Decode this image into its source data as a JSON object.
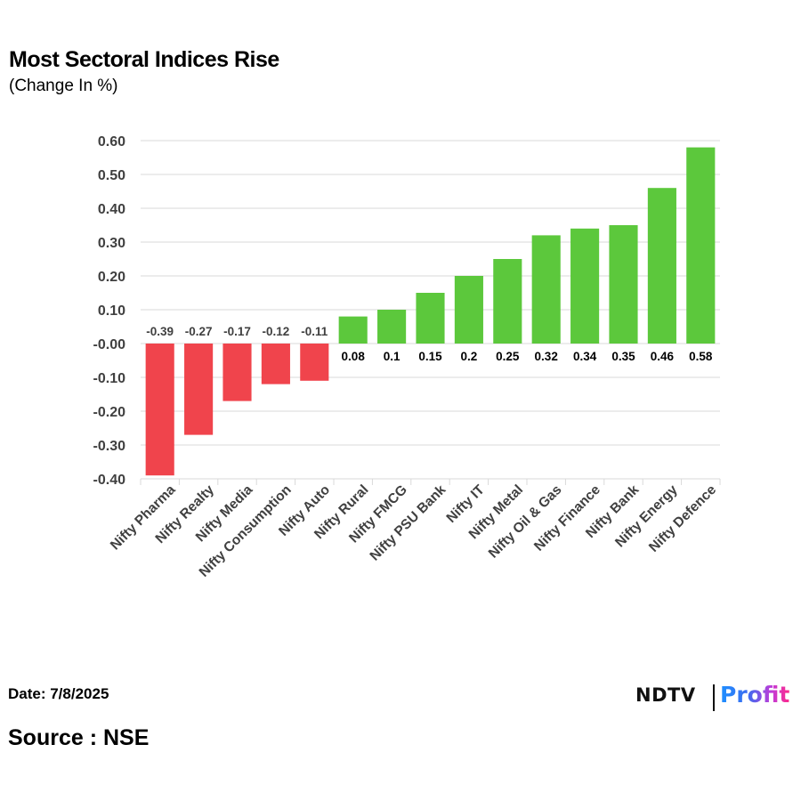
{
  "header": {
    "title": "Most Sectoral Indices Rise",
    "subtitle": "(Change In %)"
  },
  "footer": {
    "date": "Date: 7/8/2025",
    "source": "Source : NSE"
  },
  "logo": {
    "brand": "NDTV",
    "product": "Profit"
  },
  "colors": {
    "positive": "#5cc83c",
    "negative": "#f0444c",
    "grid": "#d9d9d9",
    "axis_text": "#404040",
    "label_negative": "#404040",
    "label_positive": "#000000"
  },
  "chart_data": {
    "type": "bar",
    "title": "Most Sectoral Indices Rise",
    "subtitle": "(Change In %)",
    "xlabel": "",
    "ylabel": "",
    "categories": [
      "Nifty Pharma",
      "Nifty Realty",
      "Nifty Media",
      "Nifty Consumption",
      "Nifty Auto",
      "Nifty Rural",
      "Nifty FMCG",
      "Nifty PSU Bank",
      "Nifty IT",
      "Nifty Metal",
      "Nifty Oil & Gas",
      "Nifty Finance",
      "Nifty Bank",
      "Nifty Energy",
      "Nifty Defence"
    ],
    "values": [
      -0.39,
      -0.27,
      -0.17,
      -0.12,
      -0.11,
      0.08,
      0.1,
      0.15,
      0.2,
      0.25,
      0.32,
      0.34,
      0.35,
      0.46,
      0.58
    ],
    "data_labels": [
      "-0.39",
      "-0.27",
      "-0.17",
      "-0.12",
      "-0.11",
      "0.08",
      "0.1",
      "0.15",
      "0.2",
      "0.25",
      "0.32",
      "0.34",
      "0.35",
      "0.46",
      "0.58"
    ],
    "y_ticks": [
      0.6,
      0.5,
      0.4,
      0.3,
      0.2,
      0.1,
      0,
      -0.1,
      -0.2,
      -0.3,
      -0.4
    ],
    "y_tick_labels": [
      "0.60",
      "0.50",
      "0.40",
      "0.30",
      "0.20",
      "0.10",
      "-0.00",
      "-0.10",
      "-0.20",
      "-0.30",
      "-0.40"
    ],
    "ylim": [
      -0.4,
      0.6
    ],
    "grid": true,
    "legend": "none"
  }
}
